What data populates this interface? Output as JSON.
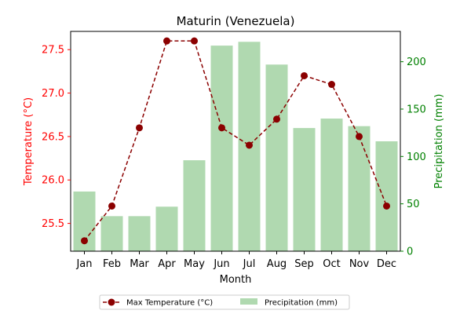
{
  "chart_data": {
    "type": "bar+line",
    "title": "Maturin (Venezuela)",
    "xlabel": "Month",
    "categories": [
      "Jan",
      "Feb",
      "Mar",
      "Apr",
      "May",
      "Jun",
      "Jul",
      "Aug",
      "Sep",
      "Oct",
      "Nov",
      "Dec"
    ],
    "y_left": {
      "label": "Temperature (°C)",
      "range": [
        25.18,
        27.71
      ],
      "ticks": [
        "25.5",
        "26.0",
        "26.5",
        "27.0",
        "27.5"
      ],
      "color": "#ff0000"
    },
    "y_right": {
      "label": "Precipitation (mm)",
      "range": [
        0,
        232
      ],
      "ticks": [
        "0",
        "50",
        "100",
        "150",
        "200"
      ],
      "color": "#008000"
    },
    "series": [
      {
        "name": "Max Temperature (°C)",
        "type": "line",
        "axis": "left",
        "color": "#8b0000",
        "values": [
          25.3,
          25.7,
          26.6,
          27.6,
          27.6,
          26.6,
          26.4,
          26.7,
          27.2,
          27.1,
          26.5,
          25.7
        ]
      },
      {
        "name": "Precipitation (mm)",
        "type": "bar",
        "axis": "right",
        "color": "#b0d9b0",
        "values": [
          63,
          37,
          37,
          47,
          96,
          217,
          221,
          197,
          130,
          140,
          132,
          116
        ]
      }
    ],
    "legend_position": "bottom-center",
    "grid": false
  }
}
